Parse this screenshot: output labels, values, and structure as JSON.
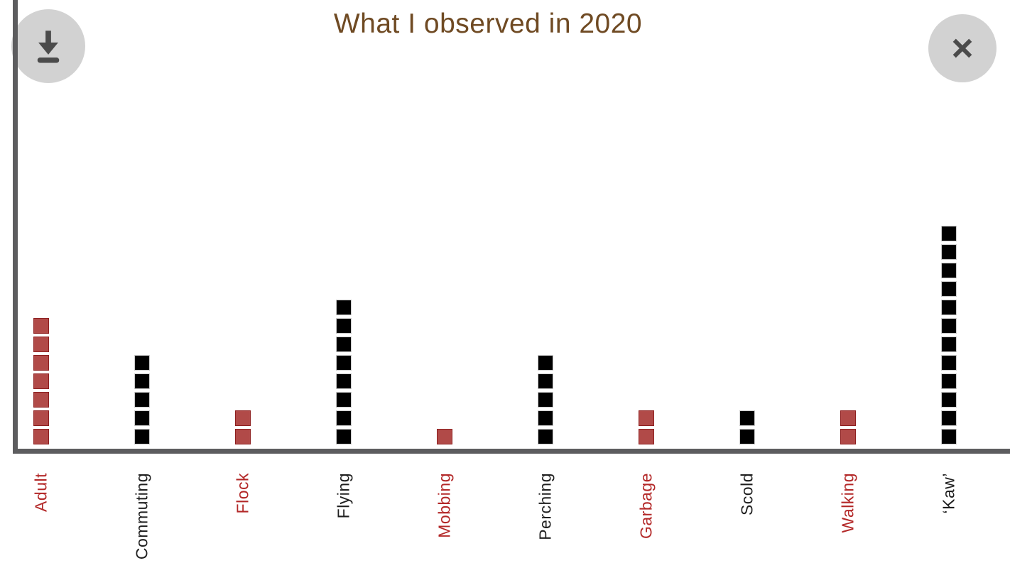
{
  "header": {
    "title": "What I observed in 2020",
    "download_icon": "download-icon",
    "close_icon": "close-icon"
  },
  "colors": {
    "title_text": "#6f4a23",
    "axis": "#5d5d5f",
    "red_fill": "#b14a48",
    "red_border": "#8e2020",
    "red_label": "#b32828",
    "black_fill": "#000000",
    "black_border": "#cbcbcb",
    "black_label": "#1f1f1f",
    "button_bg": "#d2d2d2",
    "button_glyph": "#4b4b4b"
  },
  "chart_data": {
    "type": "bar",
    "subtype": "unit-pictogram",
    "title": "What I observed in 2020",
    "categories": [
      "Adult",
      "Commuting",
      "Flock",
      "Flying",
      "Mobbing",
      "Perching",
      "Garbage",
      "Scold",
      "Walking",
      "‘Kaw’"
    ],
    "values": [
      7,
      5,
      2,
      8,
      1,
      5,
      2,
      2,
      2,
      12
    ],
    "series_colors": [
      "red",
      "black",
      "red",
      "black",
      "red",
      "black",
      "red",
      "black",
      "red",
      "black"
    ],
    "unit_value": 1,
    "xlabel": "",
    "ylabel": "",
    "ylim": [
      0,
      12
    ],
    "grid": false,
    "legend": false
  }
}
